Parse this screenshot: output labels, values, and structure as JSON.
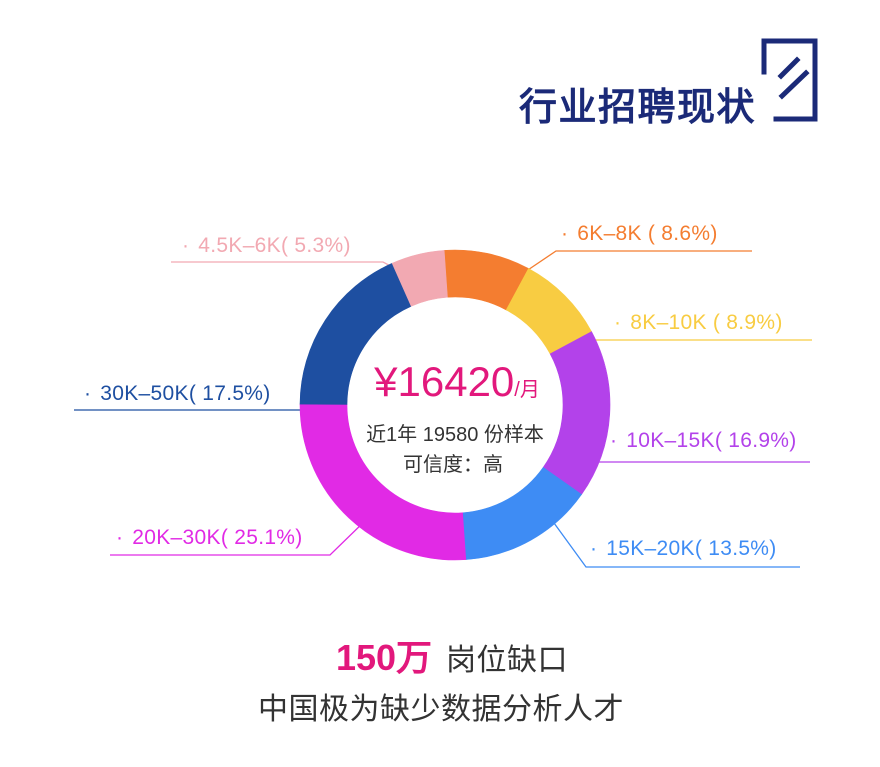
{
  "theme": {
    "accent": "#1B2A78",
    "highlight": "#E2187C",
    "text": "#333333"
  },
  "header": {
    "title": "行业招聘现状",
    "logo_icon": "logo-bracket-icon"
  },
  "chart_data": {
    "type": "pie",
    "donut": true,
    "legend": "none",
    "bullet": "·",
    "categories": [
      "6K–8K",
      "8K–10K",
      "10K–15K",
      "15K–20K",
      "20K–30K",
      "30K–50K",
      "4.5K–6K"
    ],
    "values": [
      8.6,
      8.9,
      16.9,
      13.5,
      25.1,
      17.5,
      5.3
    ],
    "value_labels": [
      "( 8.6%)",
      "( 8.9%)",
      "( 16.9%)",
      "( 13.5%)",
      "( 25.1%)",
      "( 17.5%)",
      "( 5.3%)"
    ],
    "colors": [
      "#F47D30",
      "#F8CC42",
      "#B342EA",
      "#3E8CF4",
      "#E12AE5",
      "#1E4FA1",
      "#F2A9B2"
    ],
    "center": {
      "amount": "¥16420",
      "amount_unit": "/月",
      "sample": "近1年 19580 份样本",
      "confidence": "可信度：高"
    }
  },
  "summary": {
    "highlight": "150万",
    "headline": "岗位缺口",
    "subline": "中国极为缺少数据分析人才"
  }
}
